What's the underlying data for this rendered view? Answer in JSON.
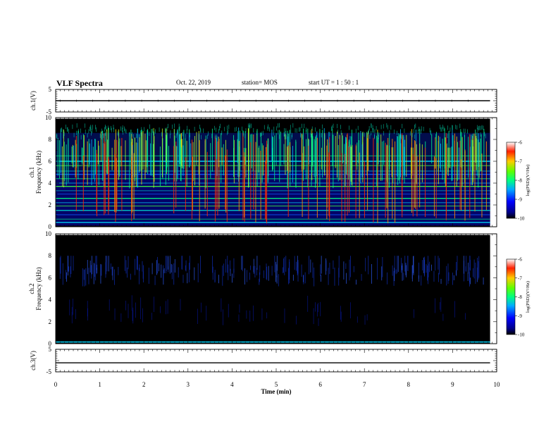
{
  "header": {
    "title": "VLF Spectra",
    "date": "Oct. 22, 2019",
    "station": "station= MOS",
    "start": "start  UT =   1 : 50 : 1"
  },
  "chart_data": [
    {
      "type": "line",
      "panel": "ch1-waveform",
      "ylabel": "ch.1(V)",
      "ylim": [
        -5,
        5
      ],
      "yticks": [
        "5",
        "-5"
      ],
      "xlim": [
        0,
        10
      ],
      "series": [
        {
          "x": [
            0,
            9.85
          ],
          "values": [
            0,
            0
          ]
        }
      ]
    },
    {
      "type": "heatmap",
      "panel": "ch1-spectrogram",
      "ylabel_line1": "ch.1",
      "ylabel_line2": "Frequency (kHz)",
      "ylim": [
        0,
        10
      ],
      "yticks": [
        "0",
        "2",
        "4",
        "6",
        "8",
        "10"
      ],
      "xlim": [
        0,
        10
      ],
      "colorbar": {
        "label": "log(PSD)(V²/Hz)",
        "ticks": [
          "-6",
          "-7",
          "-8",
          "-9",
          "-10"
        ],
        "range": [
          -10,
          -6
        ]
      }
    },
    {
      "type": "heatmap",
      "panel": "ch2-spectrogram",
      "ylabel_line1": "ch.2",
      "ylabel_line2": "Frequency (kHz)",
      "ylim": [
        0,
        10
      ],
      "yticks": [
        "0",
        "2",
        "4",
        "6",
        "8",
        "10"
      ],
      "xlim": [
        0,
        10
      ],
      "colorbar": {
        "label": "log(PSD)(V²/Hz)",
        "ticks": [
          "-6",
          "-7",
          "-8",
          "-9",
          "-10"
        ],
        "range": [
          -10,
          -6
        ]
      }
    },
    {
      "type": "line",
      "panel": "ch3-waveform",
      "ylabel": "ch.3(V)",
      "ylim": [
        -5,
        5
      ],
      "yticks": [
        "5",
        "-5"
      ],
      "xlim": [
        0,
        10
      ],
      "xlabel": "Time  (min)",
      "xticks": [
        "0",
        "1",
        "2",
        "3",
        "4",
        "5",
        "6",
        "7",
        "8",
        "9",
        "10"
      ],
      "series": [
        {
          "x": [
            0,
            9.85
          ],
          "values": [
            -1,
            -1
          ]
        }
      ]
    }
  ]
}
